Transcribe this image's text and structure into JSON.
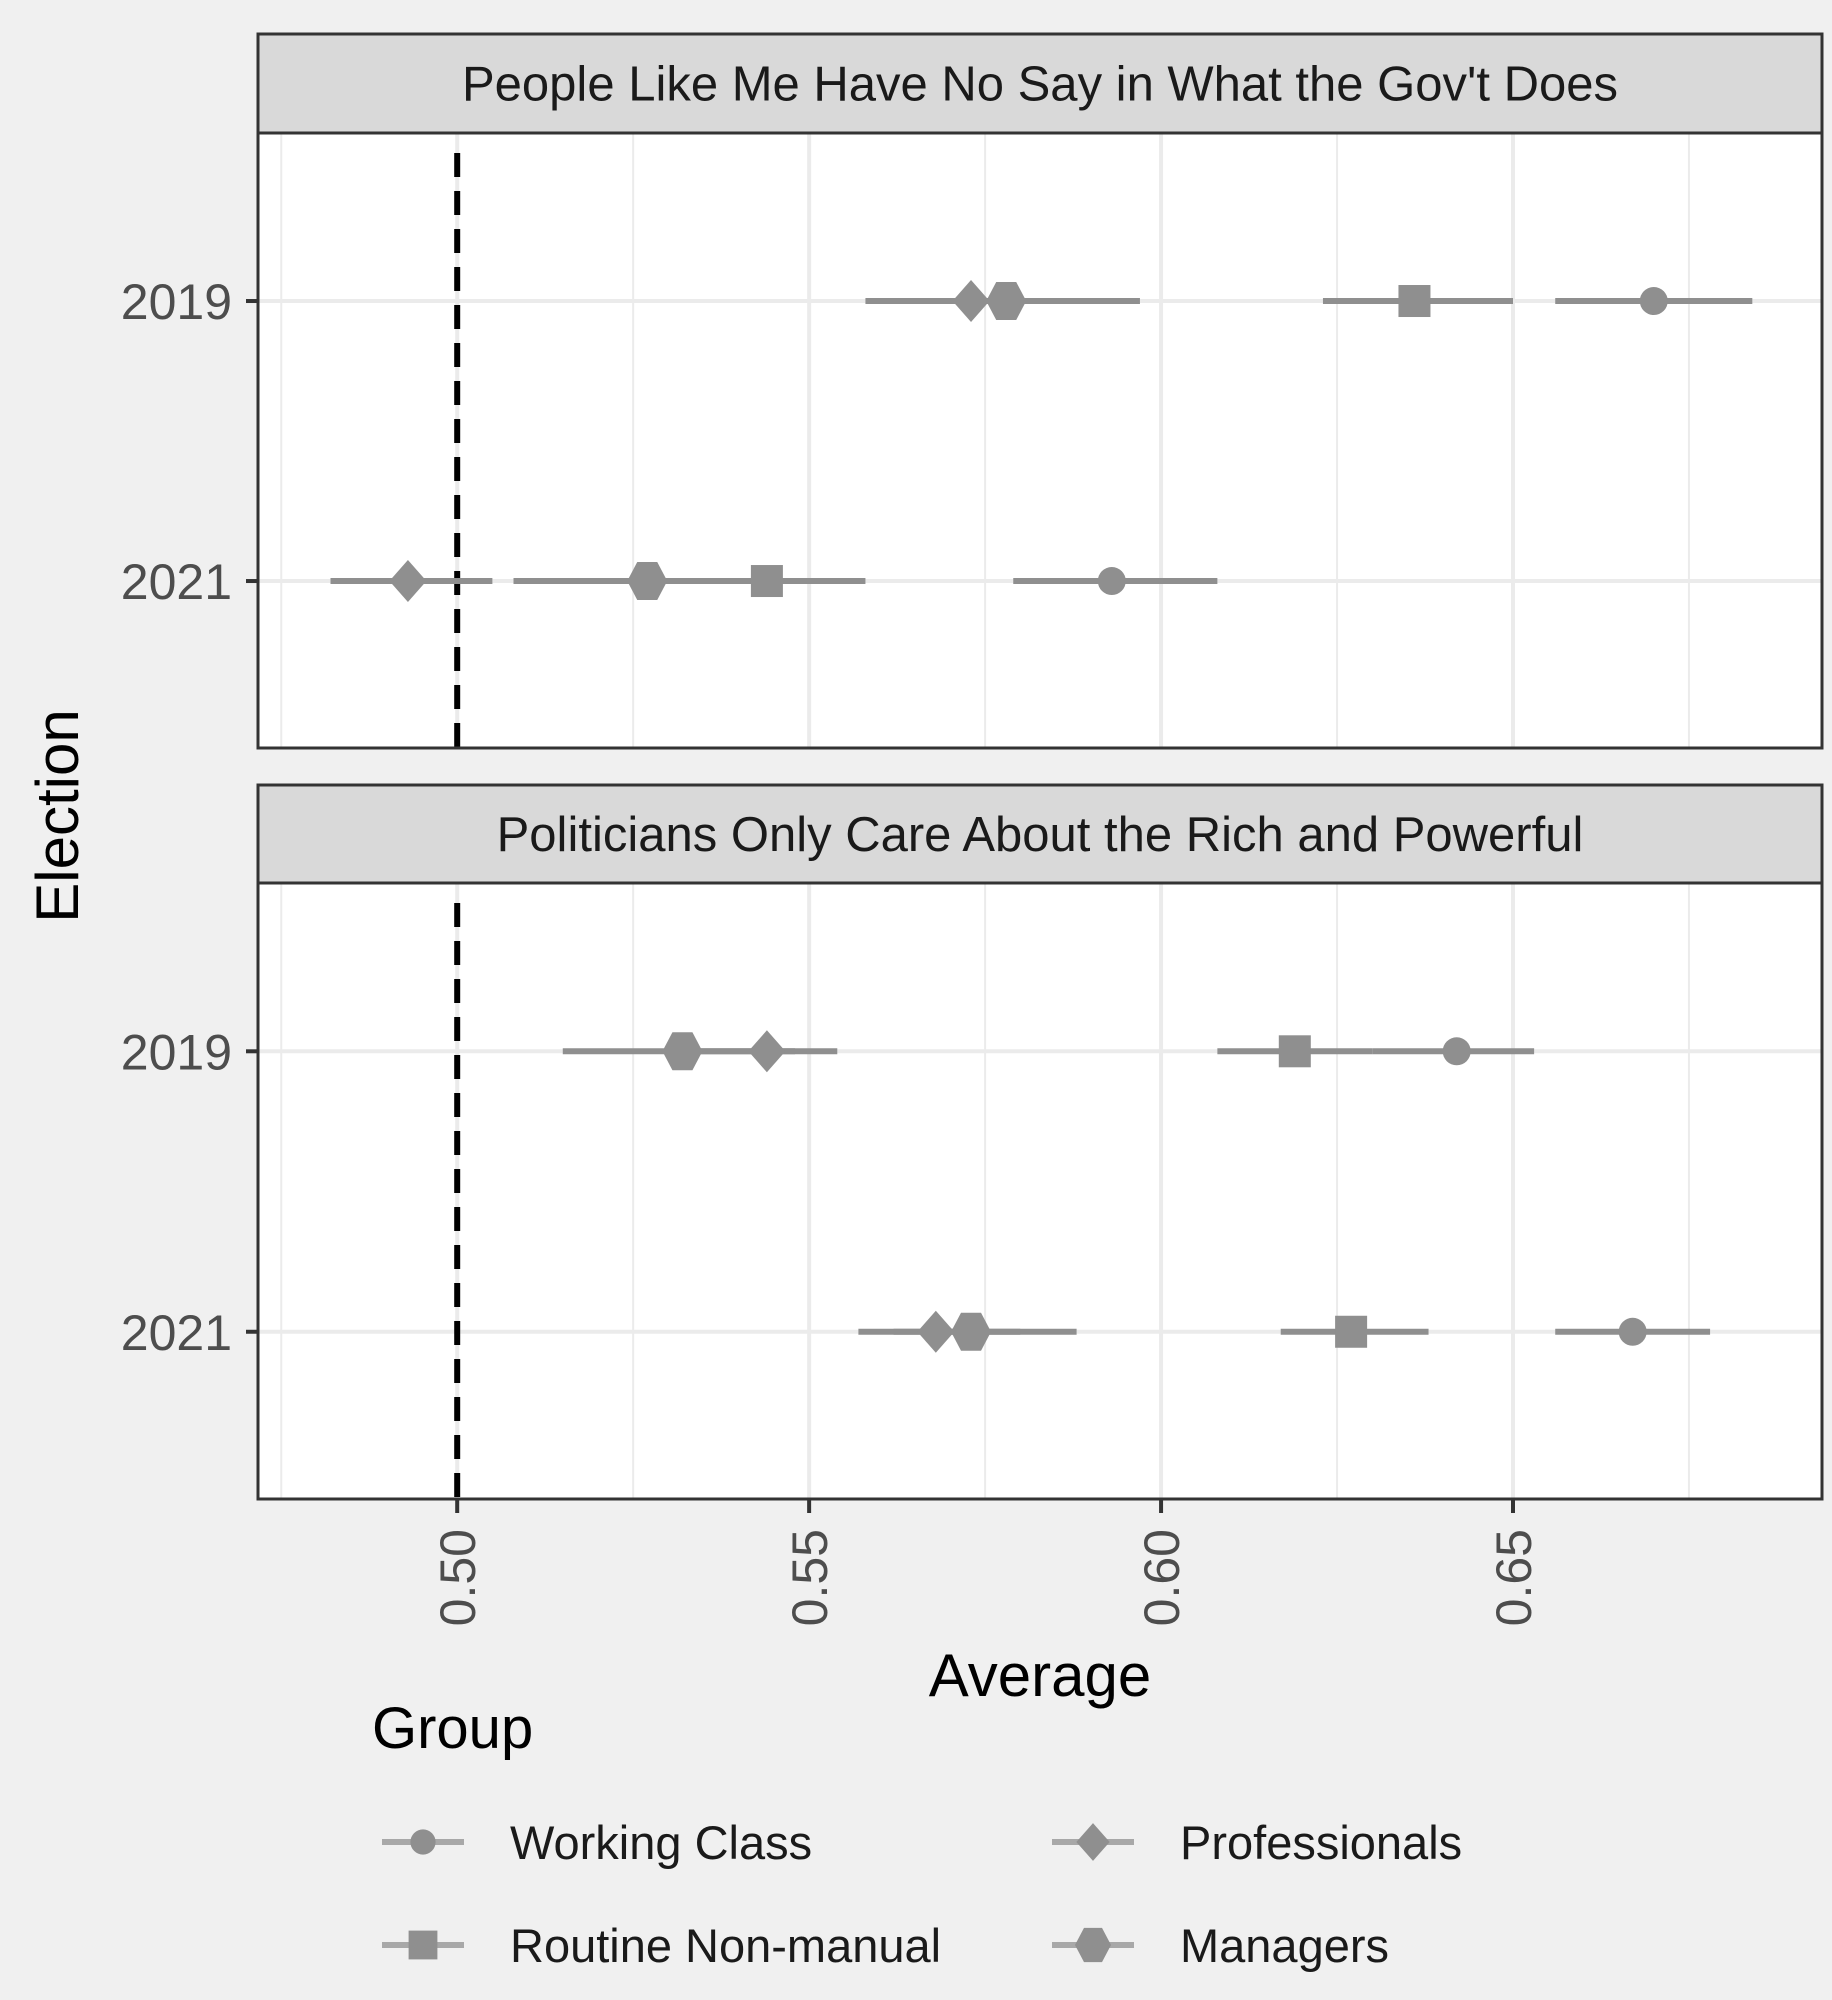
{
  "chart_data": {
    "type": "scatter",
    "subtype": "faceted dot-and-whisker (point estimate with confidence interval)",
    "xlabel": "Average",
    "ylabel": "Election",
    "xlim": [
      0.4717,
      0.6939
    ],
    "x_ticks": [
      0.5,
      0.55,
      0.6,
      0.65
    ],
    "x_tick_labels": [
      "0.50",
      "0.55",
      "0.60",
      "0.65"
    ],
    "x_minor_gridlines": [
      0.475,
      0.525,
      0.575,
      0.625,
      0.675
    ],
    "y_categories": [
      "2019",
      "2021"
    ],
    "reference_line": {
      "x": 0.5,
      "style": "dashed",
      "color": "#000000"
    },
    "grid": true,
    "legend": {
      "title": "Group",
      "placement": "bottom",
      "entries": [
        {
          "name": "Working Class",
          "shape": "circle"
        },
        {
          "name": "Professionals",
          "shape": "diamond"
        },
        {
          "name": "Routine Non-manual",
          "shape": "square"
        },
        {
          "name": "Managers",
          "shape": "hexagon"
        }
      ]
    },
    "marker_color": "#8f8f8f",
    "panels": [
      {
        "title": "People Like Me Have No Say in What the Gov't Does",
        "points": [
          {
            "election": "2019",
            "group": "Working Class",
            "value": 0.67,
            "low": 0.656,
            "high": 0.684
          },
          {
            "election": "2019",
            "group": "Routine Non-manual",
            "value": 0.636,
            "low": 0.623,
            "high": 0.65
          },
          {
            "election": "2019",
            "group": "Professionals",
            "value": 0.573,
            "low": 0.558,
            "high": 0.587
          },
          {
            "election": "2019",
            "group": "Managers",
            "value": 0.578,
            "low": 0.562,
            "high": 0.597
          },
          {
            "election": "2021",
            "group": "Working Class",
            "value": 0.593,
            "low": 0.579,
            "high": 0.608
          },
          {
            "election": "2021",
            "group": "Routine Non-manual",
            "value": 0.544,
            "low": 0.53,
            "high": 0.558
          },
          {
            "election": "2021",
            "group": "Managers",
            "value": 0.527,
            "low": 0.508,
            "high": 0.545
          },
          {
            "election": "2021",
            "group": "Professionals",
            "value": 0.493,
            "low": 0.482,
            "high": 0.505
          }
        ]
      },
      {
        "title": "Politicians Only Care About the Rich and Powerful",
        "points": [
          {
            "election": "2019",
            "group": "Working Class",
            "value": 0.642,
            "low": 0.63,
            "high": 0.653
          },
          {
            "election": "2019",
            "group": "Routine Non-manual",
            "value": 0.619,
            "low": 0.608,
            "high": 0.63
          },
          {
            "election": "2019",
            "group": "Managers",
            "value": 0.532,
            "low": 0.515,
            "high": 0.548
          },
          {
            "election": "2019",
            "group": "Professionals",
            "value": 0.544,
            "low": 0.533,
            "high": 0.554
          },
          {
            "election": "2021",
            "group": "Working Class",
            "value": 0.667,
            "low": 0.656,
            "high": 0.678
          },
          {
            "election": "2021",
            "group": "Routine Non-manual",
            "value": 0.627,
            "low": 0.617,
            "high": 0.638
          },
          {
            "election": "2021",
            "group": "Professionals",
            "value": 0.568,
            "low": 0.557,
            "high": 0.58
          },
          {
            "election": "2021",
            "group": "Managers",
            "value": 0.573,
            "low": 0.562,
            "high": 0.588
          }
        ]
      }
    ]
  }
}
